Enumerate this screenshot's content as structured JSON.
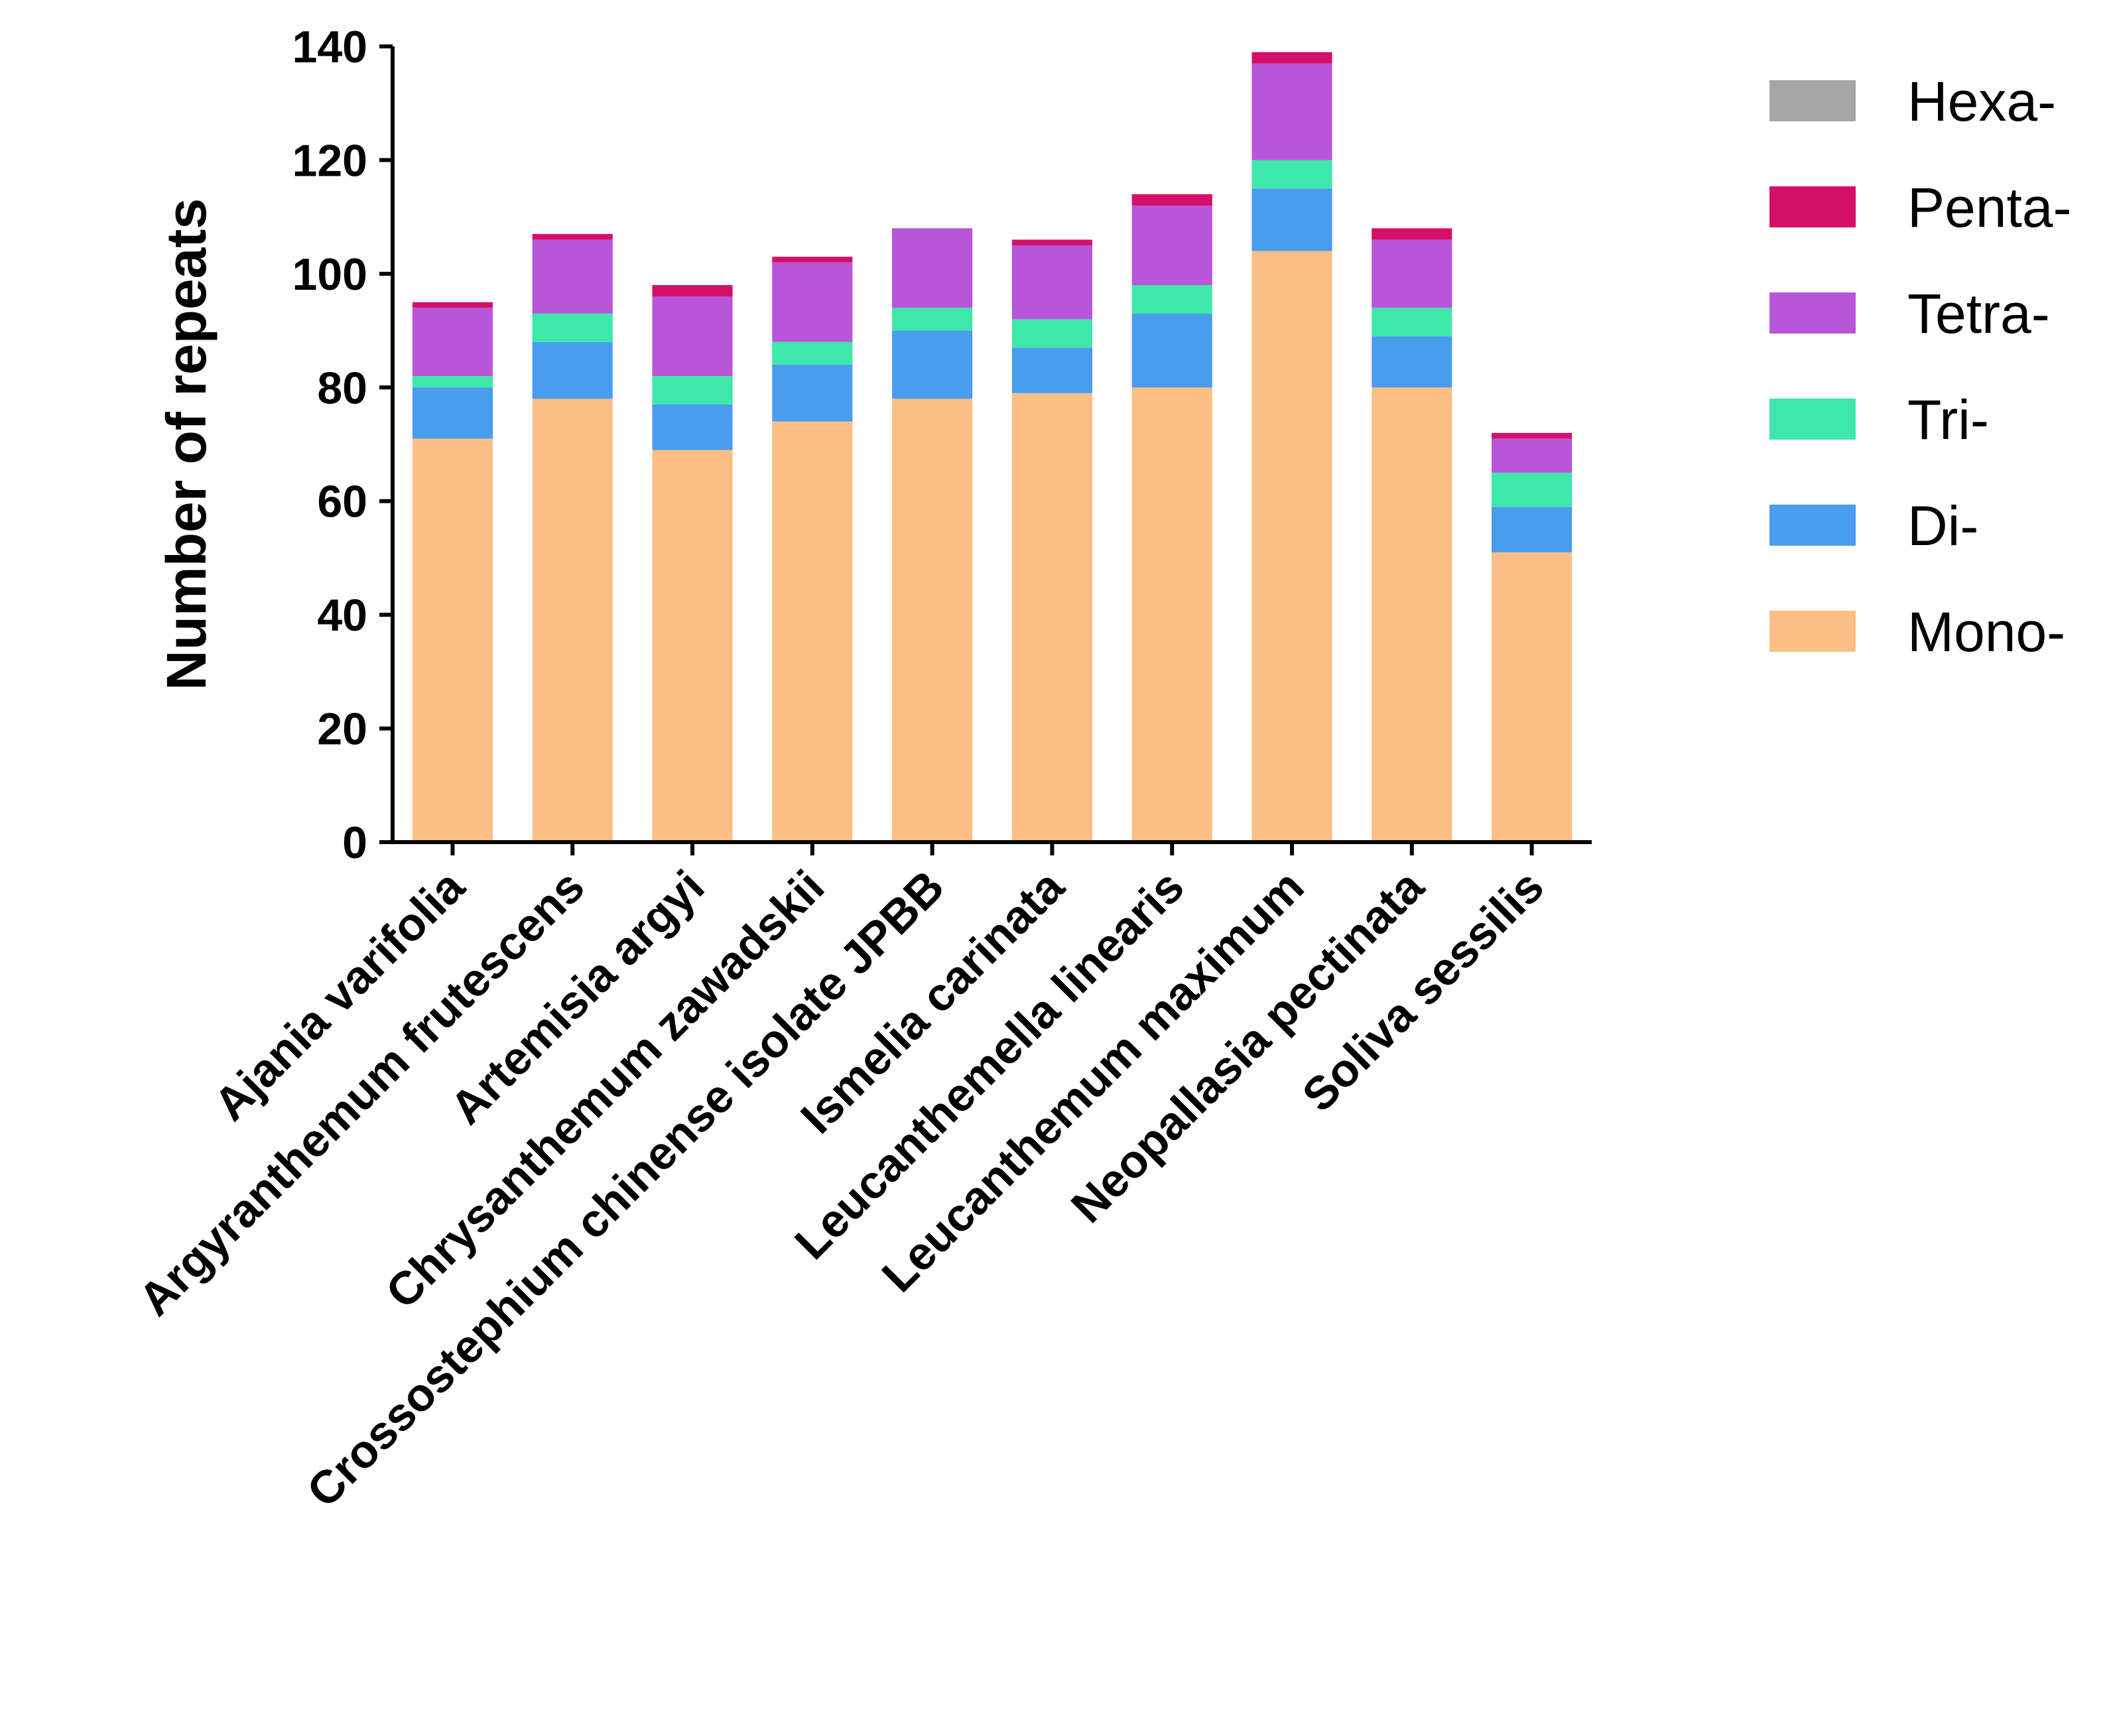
{
  "chart_data": {
    "type": "bar",
    "stacked": true,
    "title": "",
    "xlabel": "",
    "ylabel": "Number of repeats",
    "ylim": [
      0,
      140
    ],
    "yticks": [
      0,
      20,
      40,
      60,
      80,
      100,
      120,
      140
    ],
    "categories": [
      "Ajania varifolia",
      "Argyranthemum frutescens",
      "Artemisia argyi",
      "Chrysanthemum zawadskii",
      "Crossostephium chinense isolate JPBB",
      "Ismelia carinata",
      "Leucanthemella linearis",
      "Leucanthemum maximum",
      "Neopallasia pectinata",
      "Soliva sessilis"
    ],
    "series": [
      {
        "name": "Mono-",
        "color": "#FBBF85",
        "values": [
          71,
          78,
          69,
          74,
          78,
          79,
          80,
          104,
          80,
          51
        ]
      },
      {
        "name": "Di-",
        "color": "#4A9CEF",
        "values": [
          9,
          10,
          8,
          10,
          12,
          8,
          13,
          11,
          9,
          8
        ]
      },
      {
        "name": "Tri-",
        "color": "#3DE8AA",
        "values": [
          2,
          5,
          5,
          4,
          4,
          5,
          5,
          5,
          5,
          6
        ]
      },
      {
        "name": "Tetra-",
        "color": "#B955D9",
        "values": [
          12,
          13,
          14,
          14,
          14,
          13,
          14,
          17,
          12,
          6
        ]
      },
      {
        "name": "Penta-",
        "color": "#D5106A",
        "values": [
          1,
          1,
          2,
          1,
          0,
          1,
          2,
          2,
          2,
          1
        ]
      },
      {
        "name": "Hexa-",
        "color": "#A6A6A6",
        "values": [
          0,
          0,
          0,
          0,
          0,
          0,
          0,
          0,
          0,
          0
        ]
      }
    ],
    "legend_order": [
      "Hexa-",
      "Penta-",
      "Tetra-",
      "Tri-",
      "Di-",
      "Mono-"
    ],
    "legend_position": "right",
    "grid": false
  }
}
